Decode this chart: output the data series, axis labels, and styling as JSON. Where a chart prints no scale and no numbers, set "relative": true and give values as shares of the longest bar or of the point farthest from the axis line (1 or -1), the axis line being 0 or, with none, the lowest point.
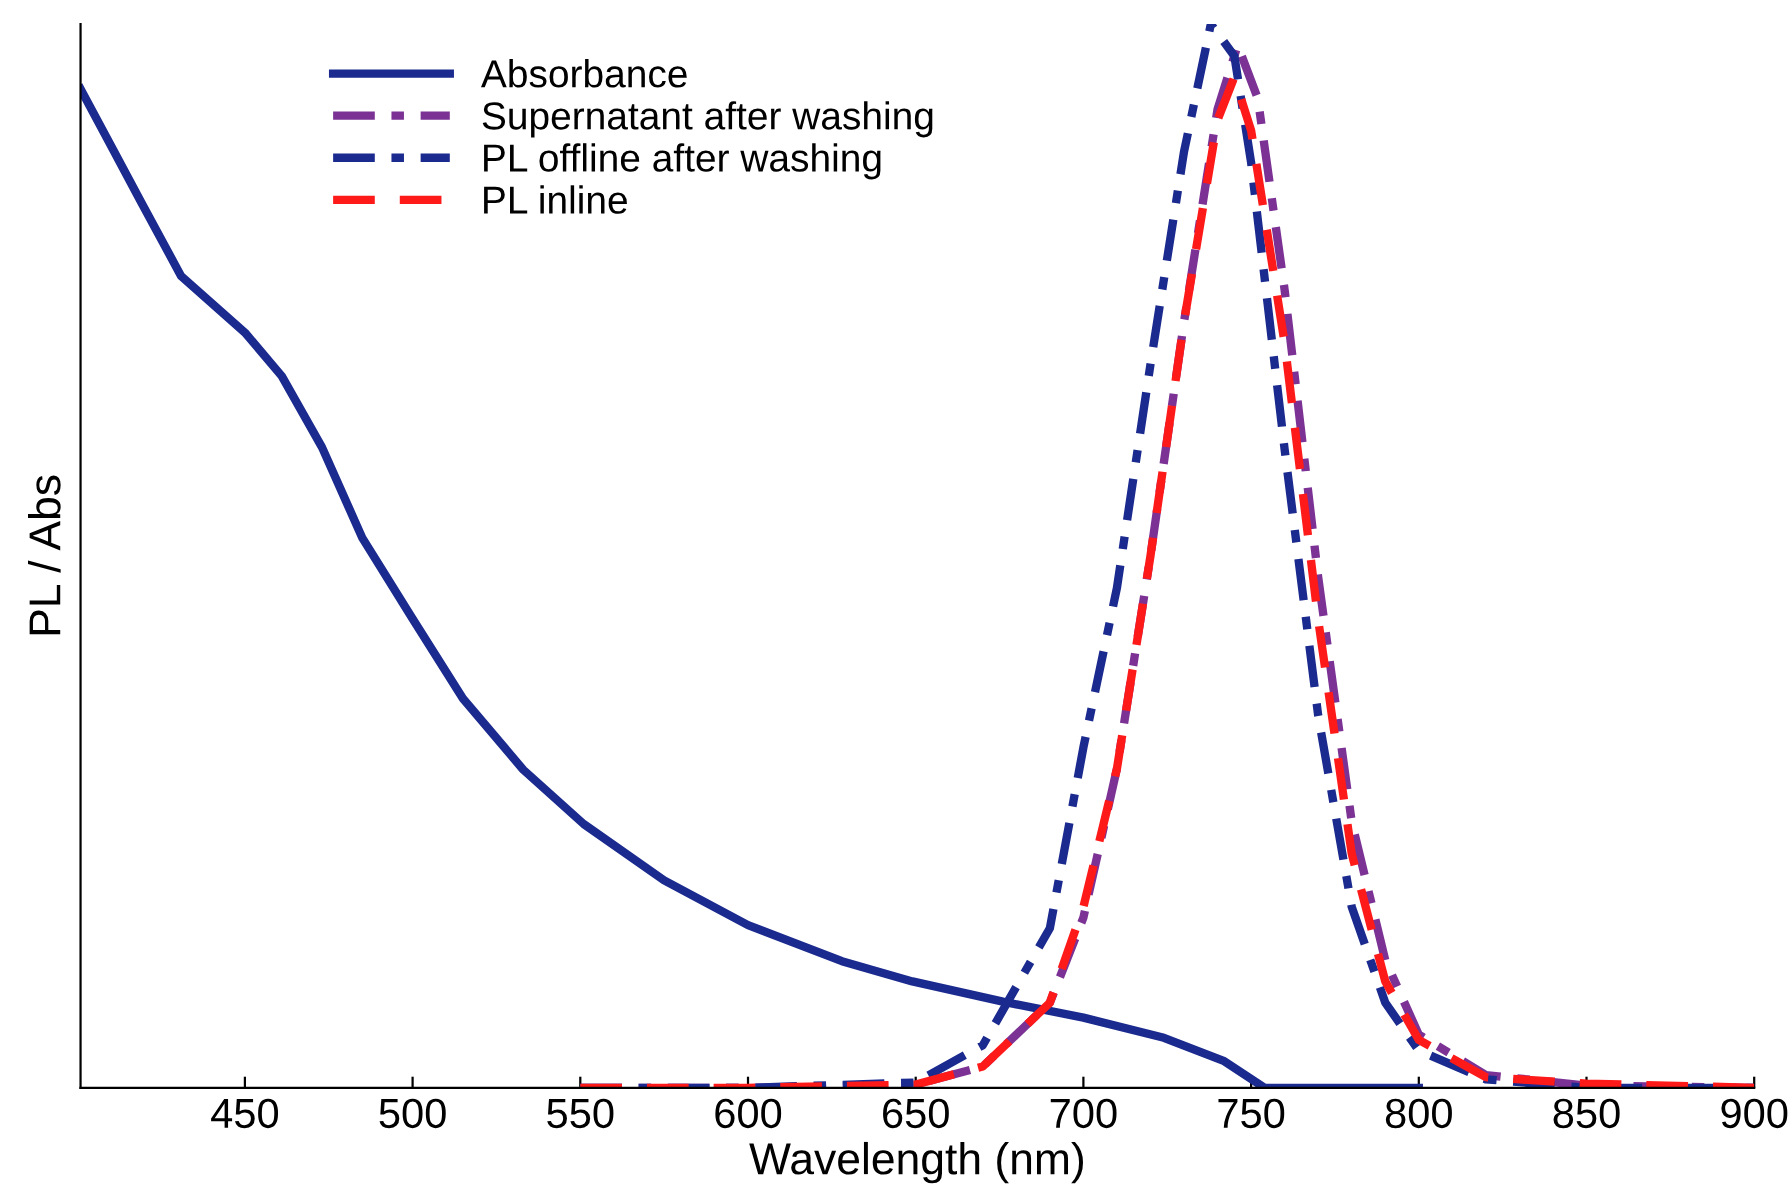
{
  "chart_data": {
    "type": "line",
    "relative": true,
    "xlabel": "Wavelength (nm)",
    "ylabel": "PL / Abs",
    "xlim": [
      401,
      900
    ],
    "xticks": [
      450,
      500,
      550,
      600,
      650,
      700,
      750,
      800,
      850,
      900
    ],
    "tick_labels": "x",
    "grid": false,
    "legend": "top left",
    "series": [
      {
        "name": "Absorbance",
        "color": "#1b2a8e",
        "line_style": "solid",
        "x": [
          401,
          410,
          419,
          431,
          450,
          461,
          473,
          485,
          500,
          515,
          533,
          551,
          575,
          600,
          628,
          649,
          676,
          700,
          724,
          742,
          754,
          800
        ],
        "values": [
          0.939,
          0.886,
          0.833,
          0.763,
          0.71,
          0.669,
          0.602,
          0.517,
          0.441,
          0.366,
          0.299,
          0.248,
          0.195,
          0.153,
          0.119,
          0.1,
          0.081,
          0.066,
          0.047,
          0.025,
          0,
          0
        ]
      },
      {
        "name": "Supernatant after washing",
        "color": "#7b3294",
        "line_style": "dashdot",
        "x": [
          550,
          600,
          650,
          670,
          690,
          700,
          710,
          720,
          730,
          740,
          746,
          752,
          760,
          770,
          780,
          790,
          800,
          820,
          850,
          900
        ],
        "values": [
          0,
          0,
          0.003,
          0.02,
          0.08,
          0.16,
          0.3,
          0.5,
          0.72,
          0.92,
          0.98,
          0.93,
          0.75,
          0.48,
          0.25,
          0.12,
          0.05,
          0.012,
          0.002,
          0
        ]
      },
      {
        "name": "PL offline after washing",
        "color": "#1b2a8e",
        "line_style": "dashdot",
        "x": [
          550,
          600,
          650,
          670,
          690,
          700,
          710,
          720,
          730,
          738,
          745,
          750,
          760,
          770,
          780,
          790,
          800,
          820,
          850,
          900
        ],
        "values": [
          0,
          0,
          0.005,
          0.04,
          0.15,
          0.32,
          0.47,
          0.68,
          0.88,
          1.0,
          0.97,
          0.87,
          0.6,
          0.35,
          0.17,
          0.08,
          0.035,
          0.008,
          0,
          0
        ]
      },
      {
        "name": "PL inline",
        "color": "#ff1a1a",
        "line_style": "dashed",
        "x": [
          550,
          600,
          650,
          670,
          690,
          700,
          710,
          720,
          730,
          740,
          745,
          750,
          760,
          770,
          780,
          790,
          800,
          820,
          850,
          900
        ],
        "values": [
          0,
          0,
          0.003,
          0.02,
          0.08,
          0.17,
          0.3,
          0.5,
          0.72,
          0.91,
          0.95,
          0.9,
          0.7,
          0.44,
          0.22,
          0.1,
          0.045,
          0.01,
          0.004,
          0
        ]
      }
    ]
  }
}
